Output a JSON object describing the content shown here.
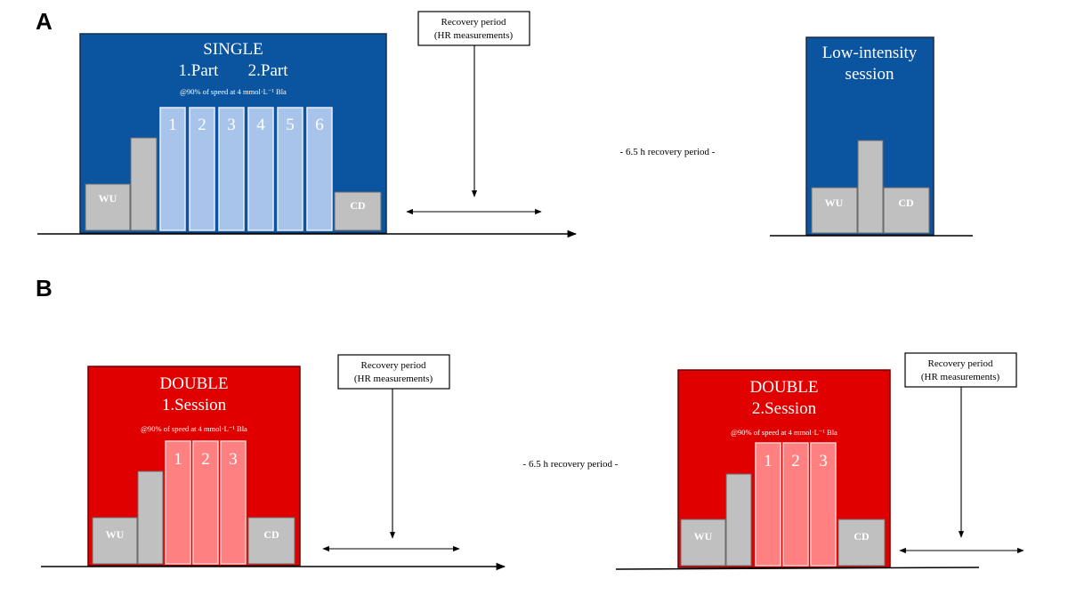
{
  "panels": {
    "a": {
      "letter": "A",
      "single": {
        "title": "SINGLE",
        "parts": "1.Part       2.Part",
        "speed": "@90% of speed at 4 mmol·L⁻¹  Bla",
        "intervals": [
          "1",
          "2",
          "3",
          "4",
          "5",
          "6"
        ],
        "wu": "WU",
        "cd": "CD"
      },
      "recovery_box": [
        "Recovery period",
        "(HR measurements)"
      ],
      "gap_note": "- 6.5 h recovery period -",
      "low": {
        "title_line1": "Low-intensity",
        "title_line2": "session",
        "wu": "WU",
        "cd": "CD"
      }
    },
    "b": {
      "letter": "B",
      "double1": {
        "title": "DOUBLE",
        "subtitle": "1.Session",
        "speed": "@90% of speed at 4 mmol·L⁻¹  Bla",
        "intervals": [
          "1",
          "2",
          "3"
        ],
        "wu": "WU",
        "cd": "CD"
      },
      "recovery_box_1": [
        "Recovery period",
        "(HR measurements)"
      ],
      "gap_note": "- 6.5 h recovery period -",
      "double2": {
        "title": "DOUBLE",
        "subtitle": "2.Session",
        "speed": "@90% of speed at 4 mmol·L⁻¹  Bla",
        "intervals": [
          "1",
          "2",
          "3"
        ],
        "wu": "WU",
        "cd": "CD"
      },
      "recovery_box_2": [
        "Recovery period",
        "(HR measurements)"
      ]
    }
  },
  "colors": {
    "single_blue": "#0b55a0",
    "double_red": "#e00000",
    "interval_blue": "#a9c4ea",
    "interval_pink": "#ff8080",
    "block_gray": "#c0c0c0"
  }
}
